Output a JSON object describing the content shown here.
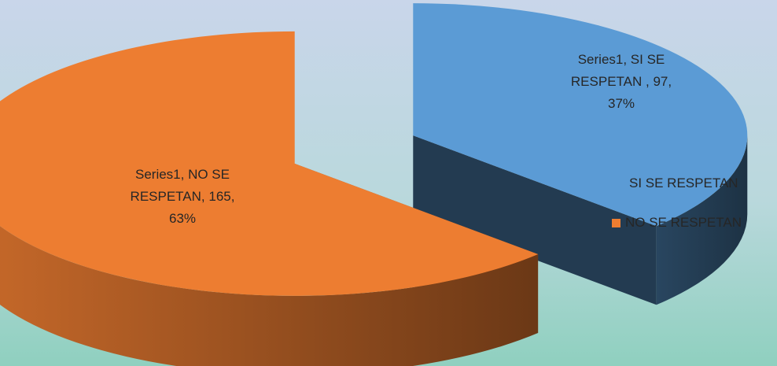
{
  "chart_data": {
    "type": "pie",
    "style": "3d-exploded",
    "series": [
      {
        "name": "Series1",
        "categories": [
          "SI SE RESPETAN",
          "NO SE RESPETAN"
        ],
        "values": [
          97,
          165
        ],
        "percents": [
          "37%",
          "63%"
        ],
        "colors": [
          "#5b9bd5",
          "#ed7d31"
        ]
      }
    ],
    "data_labels": [
      {
        "line1": "Series1, SI SE",
        "line2": "RESPETAN , 97,",
        "line3": "37%"
      },
      {
        "line1": "Series1, NO SE",
        "line2": "RESPETAN, 165,",
        "line3": "63%"
      }
    ],
    "legend": {
      "position": "right",
      "entries": [
        {
          "label": "SI SE RESPETAN",
          "color": "#5b9bd5"
        },
        {
          "label": "NO SE RESPETAN",
          "color": "#ed7d31"
        }
      ]
    }
  }
}
